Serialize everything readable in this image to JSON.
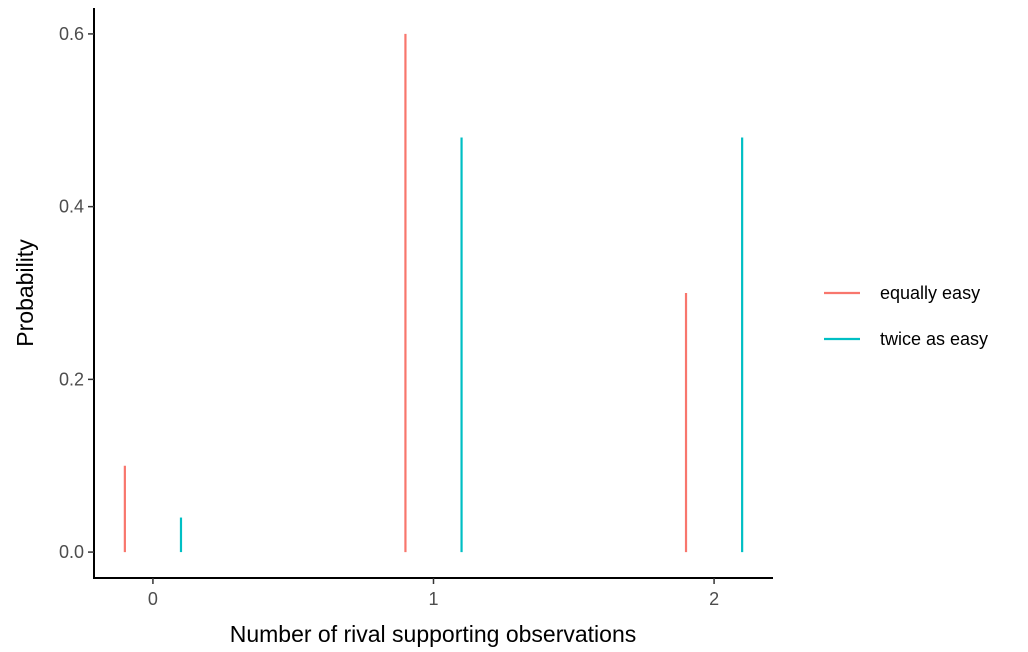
{
  "chart_data": {
    "type": "bar",
    "title": "",
    "xlabel": "Number of rival supporting observations",
    "ylabel": "Probability",
    "x": [
      0,
      1,
      2
    ],
    "x_tick_labels": [
      "0",
      "1",
      "2"
    ],
    "xlim": [
      -0.21,
      2.21
    ],
    "ylim": [
      -0.03,
      0.63
    ],
    "y_ticks": [
      0.0,
      0.2,
      0.4,
      0.6
    ],
    "y_tick_labels": [
      "0.0",
      "0.2",
      "0.4",
      "0.6"
    ],
    "dodge": 0.1,
    "grid": false,
    "legend_position": "right",
    "series": [
      {
        "name": "equally easy",
        "color": "#F8766D",
        "values": [
          0.1,
          0.6,
          0.3
        ]
      },
      {
        "name": "twice as easy",
        "color": "#00BFC4",
        "values": [
          0.04,
          0.48,
          0.48
        ]
      }
    ]
  }
}
